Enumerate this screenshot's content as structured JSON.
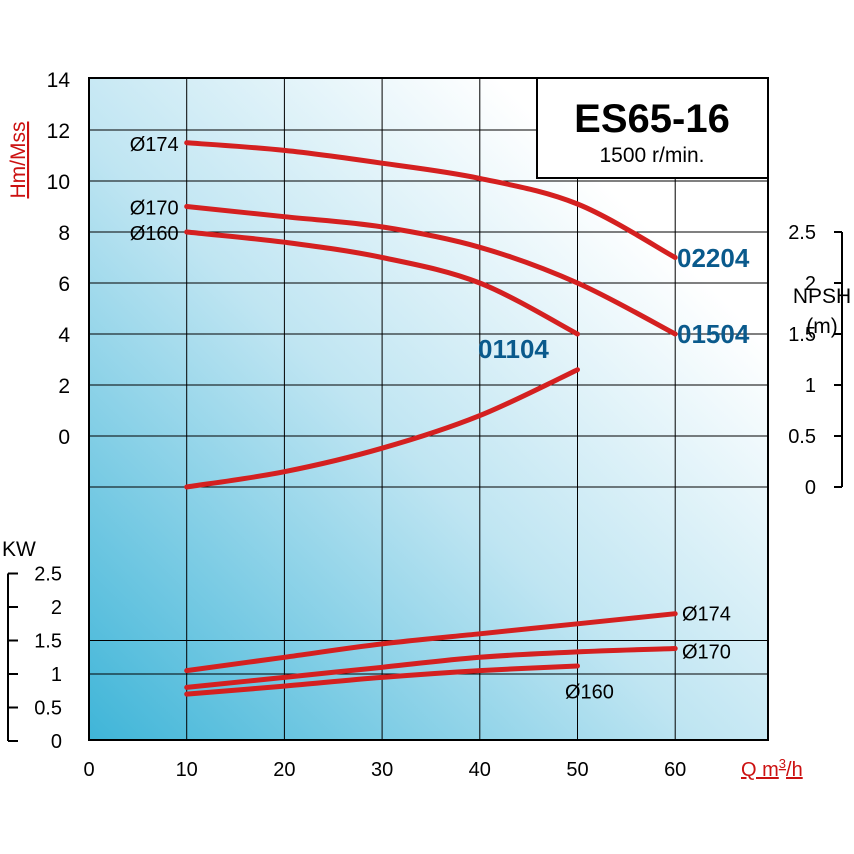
{
  "title_box": {
    "model": "ES65-16",
    "speed": "1500 r/min."
  },
  "colors": {
    "curve": "#d42020",
    "label_blue": "#0a5a8c",
    "axis_red": "#cc1111",
    "grid": "#000000"
  },
  "chart_data": {
    "type": "line",
    "x": {
      "label": "Q m³/h",
      "label_main": "Q m",
      "label_sup": "3",
      "label_tail": "/h",
      "range": [
        0,
        70
      ],
      "ticks": [
        "0",
        "10",
        "20",
        "30",
        "40",
        "50",
        "60"
      ]
    },
    "head": {
      "ylabel": "Hm/Mss",
      "range": [
        -4,
        14
      ],
      "ticks": [
        "14",
        "12",
        "10",
        "8",
        "6",
        "4",
        "2",
        "0"
      ],
      "series": [
        {
          "name": "Ø174",
          "x": [
            10,
            20,
            30,
            40,
            50,
            60
          ],
          "y": [
            11.5,
            11.2,
            10.7,
            10.1,
            9.1,
            7.0
          ]
        },
        {
          "name": "Ø170",
          "x": [
            10,
            20,
            30,
            40,
            50,
            60
          ],
          "y": [
            9.0,
            8.6,
            8.2,
            7.4,
            6.0,
            4.0
          ]
        },
        {
          "name": "Ø160",
          "x": [
            10,
            20,
            30,
            40,
            50
          ],
          "y": [
            8.0,
            7.6,
            7.0,
            6.0,
            4.0
          ]
        }
      ],
      "model_labels": [
        "02204",
        "01504",
        "01104"
      ]
    },
    "npsh": {
      "ylabel": "NPSH",
      "unit": "(m)",
      "range": [
        0,
        2.5
      ],
      "ticks": [
        "2.5",
        "2",
        "1.5",
        "1",
        "0.5",
        "0"
      ],
      "series": [
        {
          "name": "NPSH",
          "x": [
            10,
            20,
            30,
            40,
            50
          ],
          "y": [
            0.0,
            0.15,
            0.38,
            0.7,
            1.15
          ]
        }
      ]
    },
    "power": {
      "ylabel": "KW",
      "range": [
        0,
        2.5
      ],
      "ticks": [
        "2.5",
        "2",
        "1.5",
        "1",
        "0.5",
        "0"
      ],
      "series": [
        {
          "name": "Ø174",
          "x": [
            10,
            20,
            30,
            40,
            50,
            60
          ],
          "y": [
            1.05,
            1.25,
            1.45,
            1.6,
            1.75,
            1.9
          ]
        },
        {
          "name": "Ø170",
          "x": [
            10,
            20,
            30,
            40,
            50,
            60
          ],
          "y": [
            0.8,
            0.95,
            1.1,
            1.25,
            1.33,
            1.38
          ]
        },
        {
          "name": "Ø160",
          "x": [
            10,
            20,
            30,
            40,
            50
          ],
          "y": [
            0.7,
            0.82,
            0.95,
            1.05,
            1.12
          ]
        }
      ]
    }
  }
}
